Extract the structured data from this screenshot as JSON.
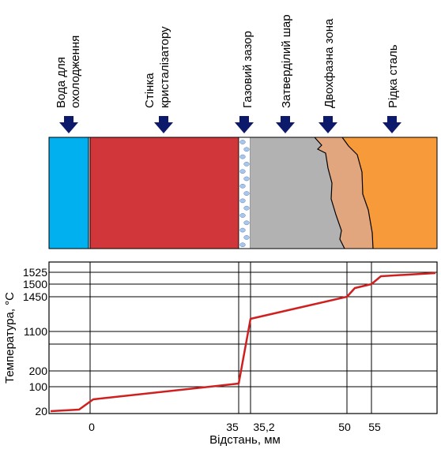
{
  "zones": {
    "water": {
      "label_lines": [
        "Вода для",
        "охолодження"
      ],
      "color": "#00b0ef"
    },
    "wall": {
      "label_lines": [
        "Стінка",
        "кристалізатору"
      ],
      "color": "#d1373a"
    },
    "gap": {
      "label_lines": [
        "Газовий зазор"
      ],
      "color": "#ffffff",
      "bubble_color": "#a9c6ec"
    },
    "solid": {
      "label_lines": [
        "Затверділий шар"
      ],
      "color": "#b2b2b2"
    },
    "mushy": {
      "label_lines": [
        "Двохфазна зона"
      ],
      "color": "#e2a67f"
    },
    "liquid": {
      "label_lines": [
        "Рідка сталь"
      ],
      "color": "#f79a3a"
    }
  },
  "arrow_color": "#0d1a6b",
  "chart_data": {
    "type": "line",
    "xlabel": "Відстань, мм",
    "ylabel": "Температура, °С",
    "x_ticks": [
      "0",
      "35",
      "35,2",
      "50",
      "55"
    ],
    "y_ticks": [
      "20",
      "100",
      "200",
      "1100",
      "1450",
      "1500",
      "1525"
    ],
    "series": [
      {
        "color": "#d01f1f",
        "points": [
          {
            "x": "wall-start",
            "y": 20
          },
          {
            "x": "0",
            "y": 40
          },
          {
            "x": "35",
            "y": 100
          },
          {
            "x": "35,2",
            "y": 1100
          },
          {
            "x": "50",
            "y": 1450
          },
          {
            "x": "55",
            "y": 1500
          },
          {
            "x": "end",
            "y": 1525
          }
        ]
      }
    ],
    "grid": true
  }
}
